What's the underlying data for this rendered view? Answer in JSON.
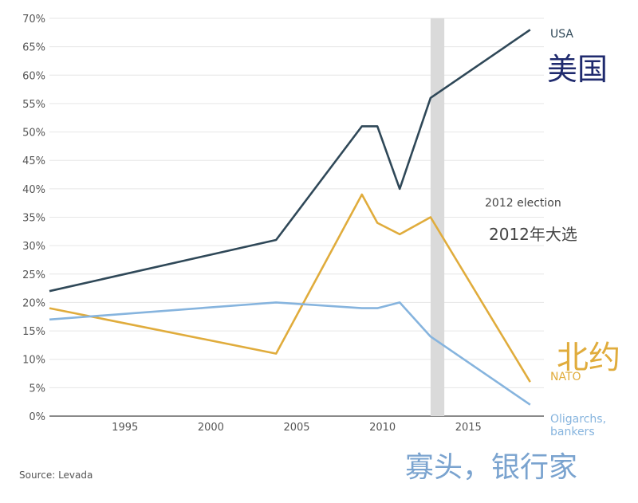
{
  "chart_data": {
    "type": "line",
    "y_ticks": [
      "70%",
      "65%",
      "60%",
      "55%",
      "50%",
      "45%",
      "40%",
      "35%",
      "30%",
      "25%",
      "20%",
      "15%",
      "10%",
      "5%",
      "0%"
    ],
    "x_ticks": [
      "1995",
      "2000",
      "2005",
      "2010",
      "2015"
    ],
    "ylim": [
      0,
      70
    ],
    "xlim": [
      1990.6,
      2019.4
    ],
    "grid": true,
    "series": [
      {
        "name": "USA",
        "name_zh": "美国",
        "color": "#2f4858",
        "points": [
          [
            1990.6,
            22
          ],
          [
            2003.8,
            31
          ],
          [
            2008.8,
            51
          ],
          [
            2009.7,
            51
          ],
          [
            2011.0,
            40
          ],
          [
            2012.8,
            56
          ],
          [
            2018.6,
            68
          ]
        ]
      },
      {
        "name": "NATO",
        "name_zh": "北约",
        "color": "#e0ac3c",
        "points": [
          [
            1990.6,
            19
          ],
          [
            2003.8,
            11
          ],
          [
            2008.8,
            39
          ],
          [
            2009.7,
            34
          ],
          [
            2011.0,
            32
          ],
          [
            2012.8,
            35
          ],
          [
            2018.6,
            6
          ]
        ]
      },
      {
        "name": "Oligarchs, bankers",
        "name_zh": "寡头，银行家",
        "color": "#86b4de",
        "points": [
          [
            1990.6,
            17
          ],
          [
            2003.8,
            20
          ],
          [
            2008.8,
            19
          ],
          [
            2009.7,
            19
          ],
          [
            2011.0,
            20
          ],
          [
            2012.8,
            14
          ],
          [
            2018.6,
            2
          ]
        ]
      }
    ],
    "annotation": {
      "band_from": 2012.8,
      "band_to": 2013.6,
      "band_color": "#dadada",
      "label": "2012 election",
      "label_zh": "2012年大选"
    },
    "source": "Source: Levada"
  }
}
